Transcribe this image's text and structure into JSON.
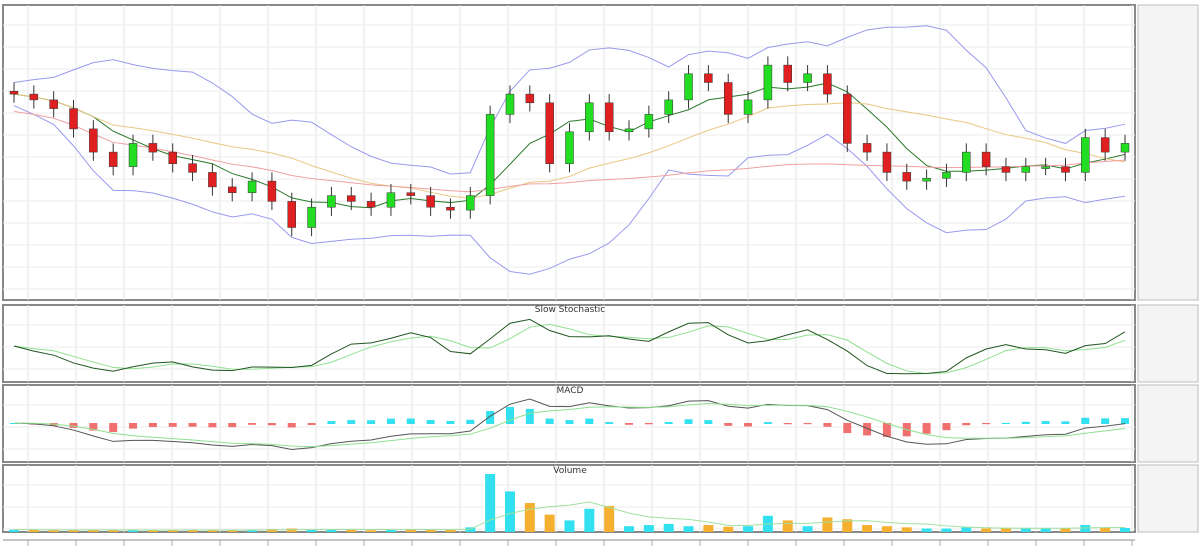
{
  "chart_data": {
    "type": "candlestick",
    "title": "",
    "panels": [
      {
        "name": "price",
        "title": ""
      },
      {
        "name": "stochastic",
        "title": "Slow Stochastic"
      },
      {
        "name": "macd",
        "title": "MACD"
      },
      {
        "name": "volume",
        "title": "Volume"
      }
    ],
    "closes": [
      71,
      69,
      66,
      59,
      51,
      46,
      54,
      51,
      47,
      44,
      39,
      37,
      41,
      34,
      25,
      32,
      36,
      34,
      32,
      37,
      36,
      32,
      31,
      36,
      64,
      71,
      68,
      47,
      58,
      68,
      58,
      59,
      64,
      69,
      78,
      75,
      64,
      69,
      81,
      75,
      78,
      71,
      54,
      51,
      44,
      41,
      42,
      44,
      51,
      46,
      44,
      46,
      46,
      44,
      56,
      51,
      54
    ],
    "volume": [
      4,
      4,
      3,
      3,
      4,
      3,
      4,
      3,
      3,
      4,
      3,
      3,
      4,
      5,
      6,
      4,
      4,
      4,
      3,
      4,
      5,
      4,
      4,
      8,
      100,
      70,
      50,
      30,
      20,
      40,
      45,
      10,
      12,
      14,
      10,
      12,
      9,
      10,
      28,
      20,
      10,
      25,
      22,
      12,
      10,
      8,
      6,
      6,
      8,
      6,
      6,
      7,
      6,
      6,
      12,
      8,
      7
    ],
    "ylim": [
      0,
      100
    ],
    "overlays": [
      "Bollinger Bands",
      "Moving Averages"
    ],
    "grid": true,
    "colors": {
      "up": "#22dd22",
      "down": "#e02020",
      "bb": "#9999ee",
      "volume_up": "#33e0f0",
      "volume_down": "#f5b030",
      "macd_pos": "#33e0f0",
      "macd_neg": "#f07070"
    }
  }
}
